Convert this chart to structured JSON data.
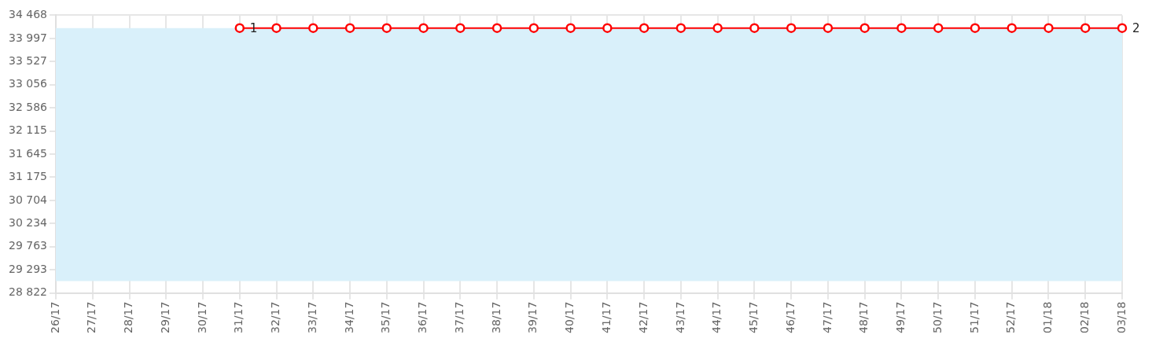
{
  "chart_data": {
    "type": "line",
    "categories": [
      "26/17",
      "27/17",
      "28/17",
      "29/17",
      "30/17",
      "31/17",
      "32/17",
      "33/17",
      "34/17",
      "35/17",
      "36/17",
      "37/17",
      "38/17",
      "39/17",
      "40/17",
      "41/17",
      "42/17",
      "43/17",
      "44/17",
      "45/17",
      "46/17",
      "47/17",
      "48/17",
      "49/17",
      "50/17",
      "51/17",
      "52/17",
      "01/18",
      "02/18",
      "03/18"
    ],
    "series": [
      {
        "color": "#ff0000",
        "values": [
          null,
          null,
          null,
          null,
          null,
          34208,
          34208,
          34208,
          34208,
          34208,
          34208,
          34208,
          34208,
          34208,
          34208,
          34208,
          34208,
          34208,
          34208,
          34208,
          34208,
          34208,
          34208,
          34208,
          34208,
          34208,
          34208,
          34208,
          34208,
          34208
        ]
      }
    ],
    "ylim": [
      28822,
      34468
    ],
    "yticks": [
      {
        "value": 28822,
        "label": "28 822"
      },
      {
        "value": 29293,
        "label": "29 293"
      },
      {
        "value": 29763,
        "label": "29 763"
      },
      {
        "value": 30234,
        "label": "30 234"
      },
      {
        "value": 30704,
        "label": "30 704"
      },
      {
        "value": 31175,
        "label": "31 175"
      },
      {
        "value": 31645,
        "label": "31 645"
      },
      {
        "value": 32115,
        "label": "32 115"
      },
      {
        "value": 32586,
        "label": "32 586"
      },
      {
        "value": 33056,
        "label": "33 056"
      },
      {
        "value": 33527,
        "label": "33 527"
      },
      {
        "value": 33997,
        "label": "33 997"
      },
      {
        "value": 34468,
        "label": "34 468"
      }
    ],
    "bands": [
      {
        "axis": "y",
        "from": 29066,
        "to": 34208,
        "color": "#d9f0fa"
      }
    ],
    "annotations": [
      {
        "text": "1",
        "x": "31/17",
        "y": 34208
      },
      {
        "text": "2",
        "x": "03/18",
        "y": 34208
      }
    ],
    "grid": true,
    "legend": false,
    "marker": "circle",
    "line_style": "solid"
  }
}
